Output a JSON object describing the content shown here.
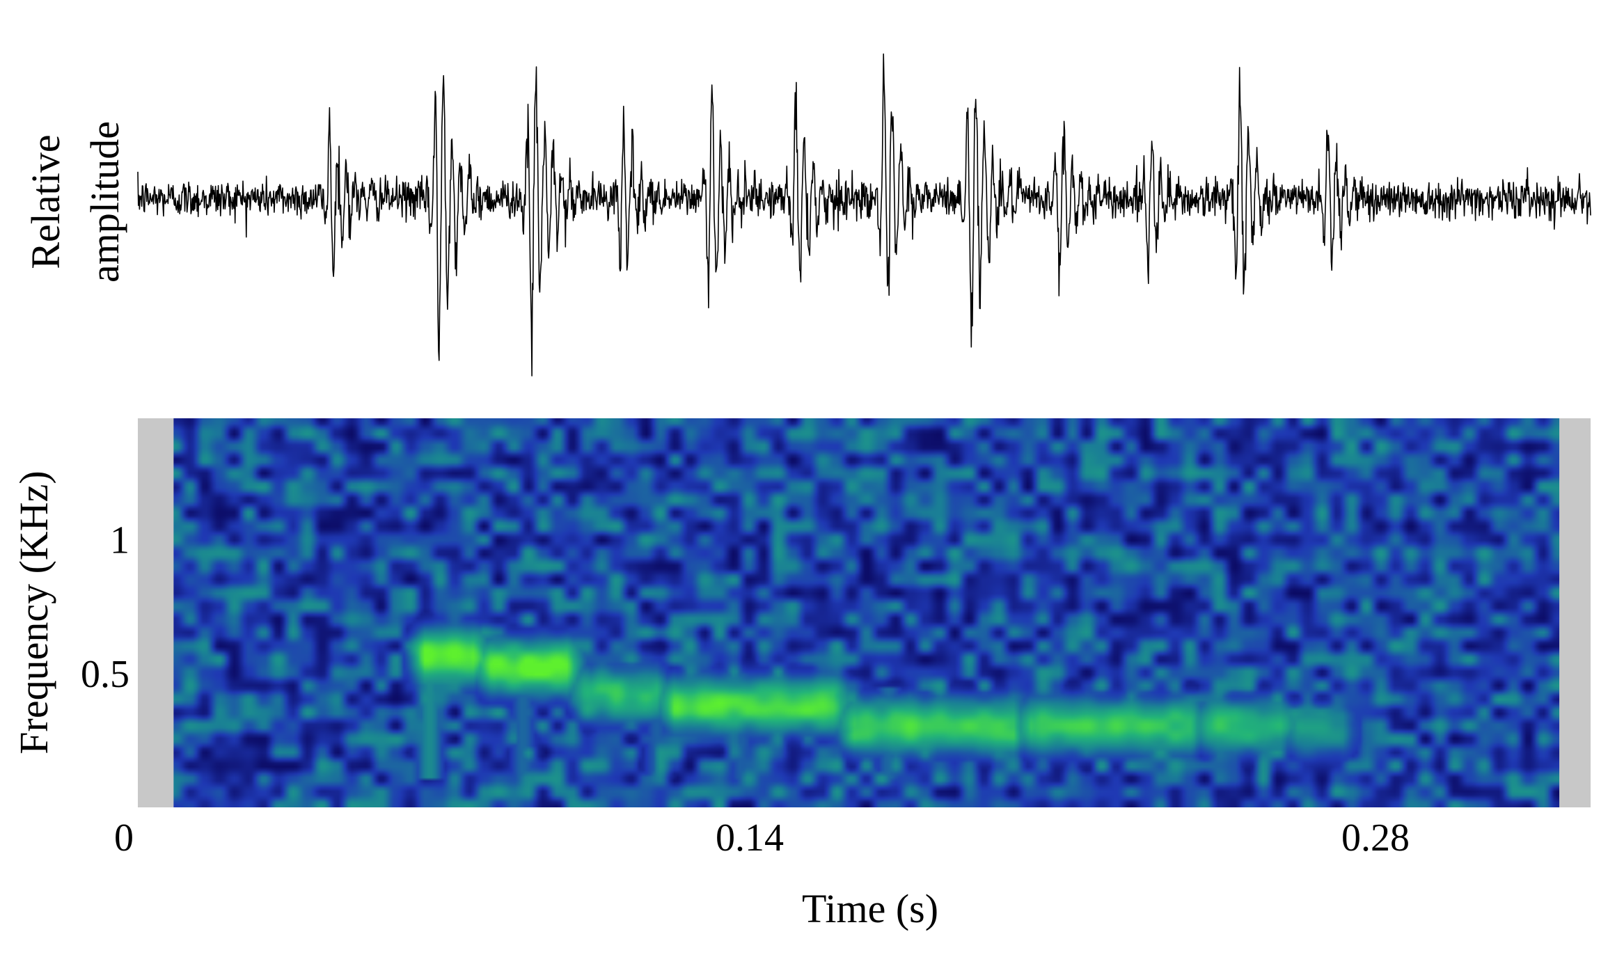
{
  "chart_data": [
    {
      "type": "line",
      "panel": "waveform",
      "ylabel": "Relative amplitude",
      "ylabel_lines": [
        "Relative",
        "amplitude"
      ],
      "xlim": [
        0,
        0.325
      ],
      "ylim": [
        -1,
        1
      ],
      "grid": false,
      "series": [
        {
          "bursts": [
            {
              "t": 0.043,
              "amp": 0.52
            },
            {
              "t": 0.067,
              "amp": 1.0
            },
            {
              "t": 0.088,
              "amp": 0.92
            },
            {
              "t": 0.108,
              "amp": 0.52
            },
            {
              "t": 0.128,
              "amp": 0.68
            },
            {
              "t": 0.147,
              "amp": 0.62
            },
            {
              "t": 0.167,
              "amp": 0.72
            },
            {
              "t": 0.186,
              "amp": 0.9
            },
            {
              "t": 0.206,
              "amp": 0.5
            },
            {
              "t": 0.226,
              "amp": 0.42
            },
            {
              "t": 0.246,
              "amp": 0.68
            },
            {
              "t": 0.266,
              "amp": 0.44
            }
          ],
          "noise_level": 0.12
        }
      ],
      "color": "#000000"
    },
    {
      "type": "heatmap",
      "panel": "spectrogram",
      "xlabel": "Time (s)",
      "ylabel": "Frequency (KHz)",
      "xlim": [
        0,
        0.325
      ],
      "ylim": [
        0,
        1.45
      ],
      "x_ticks": [
        {
          "value": 0,
          "label": "0"
        },
        {
          "value": 0.14,
          "label": "0.14"
        },
        {
          "value": 0.28,
          "label": "0.28"
        }
      ],
      "y_ticks": [
        {
          "value": 0.5,
          "label": "0.5"
        },
        {
          "value": 1,
          "label": "1"
        }
      ],
      "data_range_x": [
        0.008,
        0.318
      ],
      "colormap": [
        "#0b0a63",
        "#1f39b4",
        "#1a7f96",
        "#22b37a",
        "#5ef02e"
      ],
      "margin_color": "#c8c8c8",
      "harmonic_bands": [
        {
          "t_start": 0.062,
          "t_end": 0.077,
          "freq": 0.56,
          "intensity": 1.0
        },
        {
          "t_start": 0.077,
          "t_end": 0.098,
          "freq": 0.52,
          "intensity": 0.95
        },
        {
          "t_start": 0.098,
          "t_end": 0.118,
          "freq": 0.42,
          "intensity": 0.75
        },
        {
          "t_start": 0.118,
          "t_end": 0.158,
          "freq": 0.38,
          "intensity": 0.88
        },
        {
          "t_start": 0.158,
          "t_end": 0.198,
          "freq": 0.3,
          "intensity": 0.82
        },
        {
          "t_start": 0.198,
          "t_end": 0.238,
          "freq": 0.3,
          "intensity": 0.78
        },
        {
          "t_start": 0.238,
          "t_end": 0.258,
          "freq": 0.3,
          "intensity": 0.72
        },
        {
          "t_start": 0.258,
          "t_end": 0.272,
          "freq": 0.28,
          "intensity": 0.55
        }
      ],
      "vertical_onsets": [
        {
          "t": 0.065,
          "f_low": 0.1,
          "f_high": 0.65,
          "intensity": 0.8
        },
        {
          "t": 0.086,
          "f_low": 0.1,
          "f_high": 0.55,
          "intensity": 0.6
        },
        {
          "t": 0.116,
          "f_low": 0.1,
          "f_high": 0.5,
          "intensity": 0.55
        },
        {
          "t": 0.135,
          "f_low": 0.1,
          "f_high": 0.5,
          "intensity": 0.55
        },
        {
          "t": 0.168,
          "f_low": 0.1,
          "f_high": 0.45,
          "intensity": 0.6
        }
      ],
      "noise_level": 0.38
    }
  ]
}
